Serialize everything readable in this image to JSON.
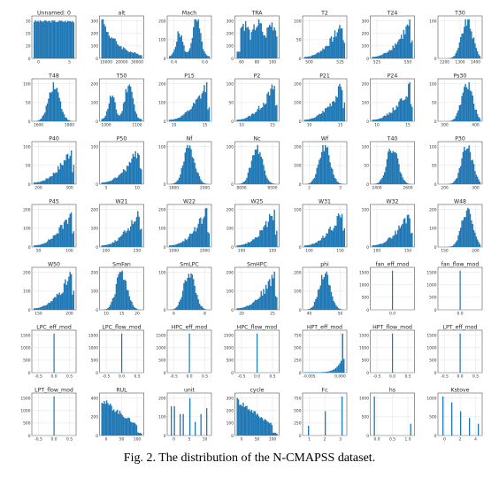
{
  "caption": "Fig. 2. The distribution of the N-CMAPSS dataset.",
  "colors": {
    "bar": "#1f77b4",
    "grid": "#d8d8d8",
    "axis": "#333333"
  },
  "chart_data": [
    {
      "type": "bar",
      "title": "Unnamed: 0",
      "xticks": [
        "0",
        "5"
      ],
      "yticks": [
        "0",
        "10",
        "20",
        "30"
      ],
      "shape": "uniform",
      "grid": true
    },
    {
      "type": "bar",
      "title": "alt",
      "xticks": [
        "10000",
        "20000",
        "30000"
      ],
      "yticks": [
        "0",
        "100",
        "200",
        "300"
      ],
      "shape": "skew-right",
      "grid": true
    },
    {
      "type": "bar",
      "title": "Mach",
      "xticks": [
        "0.4",
        "0.6"
      ],
      "yticks": [
        "0",
        "100",
        "200"
      ],
      "shape": "bimodal",
      "grid": true
    },
    {
      "type": "bar",
      "title": "TRA",
      "xticks": [
        "60",
        "80",
        "100"
      ],
      "yticks": [
        "0",
        "100",
        "200",
        "300"
      ],
      "shape": "multimodal",
      "grid": true
    },
    {
      "type": "bar",
      "title": "T2",
      "xticks": [
        "500",
        "525"
      ],
      "yticks": [
        "0",
        "50",
        "100"
      ],
      "shape": "skew-left",
      "grid": true
    },
    {
      "type": "bar",
      "title": "T24",
      "xticks": [
        "525",
        "550"
      ],
      "yticks": [
        "0",
        "100",
        "200",
        "300"
      ],
      "shape": "skew-left",
      "grid": true
    },
    {
      "type": "bar",
      "title": "T30",
      "xticks": [
        "1200",
        "1300",
        "1400"
      ],
      "yticks": [
        "0",
        "100"
      ],
      "shape": "right-bell",
      "grid": true
    },
    {
      "type": "bar",
      "title": "T48",
      "xticks": [
        "1600",
        "1800"
      ],
      "yticks": [
        "0",
        "50",
        "100"
      ],
      "shape": "bell",
      "grid": true
    },
    {
      "type": "bar",
      "title": "T50",
      "xticks": [
        "1000",
        "1100"
      ],
      "yticks": [
        "0",
        "100",
        "200"
      ],
      "shape": "bimodal",
      "grid": true
    },
    {
      "type": "bar",
      "title": "P15",
      "xticks": [
        "10",
        "15"
      ],
      "yticks": [
        "0",
        "100",
        "200"
      ],
      "shape": "skew-left",
      "grid": true
    },
    {
      "type": "bar",
      "title": "P2",
      "xticks": [
        "10",
        "15"
      ],
      "yticks": [
        "0",
        "50",
        "100"
      ],
      "shape": "skew-left",
      "grid": true
    },
    {
      "type": "bar",
      "title": "P21",
      "xticks": [
        "10",
        "15"
      ],
      "yticks": [
        "0",
        "100",
        "200"
      ],
      "shape": "skew-left",
      "grid": true
    },
    {
      "type": "bar",
      "title": "P24",
      "xticks": [
        "10",
        "15"
      ],
      "yticks": [
        "0",
        "100",
        "200"
      ],
      "shape": "skew-left",
      "grid": true
    },
    {
      "type": "bar",
      "title": "Ps30",
      "xticks": [
        "300",
        "400"
      ],
      "yticks": [
        "0",
        "50",
        "100"
      ],
      "shape": "right-bell",
      "grid": true
    },
    {
      "type": "bar",
      "title": "P40",
      "xticks": [
        "200",
        "300"
      ],
      "yticks": [
        "0",
        "50",
        "100"
      ],
      "shape": "skew-left",
      "grid": true
    },
    {
      "type": "bar",
      "title": "P50",
      "xticks": [
        "5",
        "10"
      ],
      "yticks": [
        "0",
        "100"
      ],
      "shape": "skew-left",
      "grid": true
    },
    {
      "type": "bar",
      "title": "Nf",
      "xticks": [
        "1800",
        "2000"
      ],
      "yticks": [
        "0",
        "100"
      ],
      "shape": "bell",
      "grid": true
    },
    {
      "type": "bar",
      "title": "Nc",
      "xticks": [
        "8000",
        "8500"
      ],
      "yticks": [
        "0",
        "100"
      ],
      "shape": "bell",
      "grid": true
    },
    {
      "type": "bar",
      "title": "Wf",
      "xticks": [
        "2",
        "3"
      ],
      "yticks": [
        "0",
        "100",
        "200"
      ],
      "shape": "bell",
      "grid": true
    },
    {
      "type": "bar",
      "title": "T40",
      "xticks": [
        "2400",
        "2600"
      ],
      "yticks": [
        "0",
        "50",
        "100"
      ],
      "shape": "bell",
      "grid": true
    },
    {
      "type": "bar",
      "title": "P30",
      "xticks": [
        "200",
        "300"
      ],
      "yticks": [
        "0",
        "50",
        "100"
      ],
      "shape": "right-bell",
      "grid": true
    },
    {
      "type": "bar",
      "title": "P45",
      "xticks": [
        "50",
        "100"
      ],
      "yticks": [
        "0",
        "100",
        "200"
      ],
      "shape": "skew-left",
      "grid": true
    },
    {
      "type": "bar",
      "title": "W21",
      "xticks": [
        "200",
        "250"
      ],
      "yticks": [
        "0",
        "100",
        "200"
      ],
      "shape": "skew-left",
      "grid": true
    },
    {
      "type": "bar",
      "title": "W22",
      "xticks": [
        "1000",
        "2000"
      ],
      "yticks": [
        "0",
        "100",
        "200"
      ],
      "shape": "skew-left",
      "grid": true
    },
    {
      "type": "bar",
      "title": "W25",
      "xticks": [
        "100",
        "150"
      ],
      "yticks": [
        "0",
        "100",
        "200"
      ],
      "shape": "skew-left",
      "grid": true
    },
    {
      "type": "bar",
      "title": "W31",
      "xticks": [
        "100",
        "150"
      ],
      "yticks": [
        "0",
        "100"
      ],
      "shape": "skew-left",
      "grid": true
    },
    {
      "type": "bar",
      "title": "W32",
      "xticks": [
        "100",
        "150"
      ],
      "yticks": [
        "0",
        "100"
      ],
      "shape": "skew-left",
      "grid": true
    },
    {
      "type": "bar",
      "title": "W48",
      "xticks": [
        "150",
        "200"
      ],
      "yticks": [
        "0",
        "100",
        "200"
      ],
      "shape": "right-bell",
      "grid": true
    },
    {
      "type": "bar",
      "title": "W50",
      "xticks": [
        "150",
        "200"
      ],
      "yticks": [
        "0",
        "100",
        "200"
      ],
      "shape": "skew-left",
      "grid": true
    },
    {
      "type": "bar",
      "title": "SmFan",
      "xticks": [
        "10",
        "15",
        "20"
      ],
      "yticks": [
        "0",
        "100",
        "200"
      ],
      "shape": "bell",
      "grid": true
    },
    {
      "type": "bar",
      "title": "SmLPC",
      "xticks": [
        "6",
        "8"
      ],
      "yticks": [
        "0",
        "100"
      ],
      "shape": "bell",
      "grid": true
    },
    {
      "type": "bar",
      "title": "SmHPC",
      "xticks": [
        "20",
        "25"
      ],
      "yticks": [
        "0",
        "100",
        "200"
      ],
      "shape": "skew-left",
      "grid": true
    },
    {
      "type": "bar",
      "title": "phi",
      "xticks": [
        "40",
        "50"
      ],
      "yticks": [
        "0",
        "100",
        "200"
      ],
      "shape": "bell",
      "grid": true
    },
    {
      "type": "bar",
      "title": "fan_eff_mod",
      "xticks": [
        "0.0"
      ],
      "yticks": [
        "0",
        "500",
        "1000",
        "1500"
      ],
      "shape": "spike-center",
      "grid": true
    },
    {
      "type": "bar",
      "title": "fan_flow_mod",
      "xticks": [
        "0.0"
      ],
      "yticks": [
        "0",
        "500",
        "1000",
        "1500"
      ],
      "shape": "spike-center",
      "grid": true
    },
    {
      "type": "bar",
      "title": "LPC_eff_mod",
      "xticks": [
        "-0.5",
        "0.0",
        "0.5"
      ],
      "yticks": [
        "0",
        "500",
        "1000",
        "1500"
      ],
      "shape": "spike-center",
      "grid": true
    },
    {
      "type": "bar",
      "title": "LPC_flow_mod",
      "xticks": [
        "-0.5",
        "0.0",
        "0.5"
      ],
      "yticks": [
        "0",
        "500",
        "1000",
        "1500"
      ],
      "shape": "spike-center",
      "grid": true
    },
    {
      "type": "bar",
      "title": "HPC_eff_mod",
      "xticks": [
        "-0.5",
        "0.0",
        "0.5"
      ],
      "yticks": [
        "0",
        "500",
        "1000",
        "1500"
      ],
      "shape": "spike-center",
      "grid": true
    },
    {
      "type": "bar",
      "title": "HPC_flow_mod",
      "xticks": [
        "-0.5",
        "0.0",
        "0.5"
      ],
      "yticks": [
        "0",
        "500",
        "1000",
        "1500"
      ],
      "shape": "spike-center",
      "grid": true
    },
    {
      "type": "bar",
      "title": "HPT_eff_mod",
      "xticks": [
        "-0.005",
        "0.000"
      ],
      "yticks": [
        "0",
        "250",
        "500",
        "750"
      ],
      "shape": "spike-right-tail",
      "grid": true
    },
    {
      "type": "bar",
      "title": "HPT_flow_mod",
      "xticks": [
        "-0.5",
        "0.0",
        "0.5"
      ],
      "yticks": [
        "0",
        "500",
        "1000",
        "1500"
      ],
      "shape": "spike-center",
      "grid": true
    },
    {
      "type": "bar",
      "title": "LPT_eff_mod",
      "xticks": [
        "-0.5",
        "0.0",
        "0.5"
      ],
      "yticks": [
        "0",
        "500",
        "1000",
        "1500"
      ],
      "shape": "spike-center",
      "grid": true
    },
    {
      "type": "bar",
      "title": "LPT_flow_mod",
      "xticks": [
        "-0.5",
        "0.0",
        "0.5"
      ],
      "yticks": [
        "0",
        "500",
        "1000",
        "1500"
      ],
      "shape": "spike-center",
      "grid": true
    },
    {
      "type": "bar",
      "title": "RUL",
      "xticks": [
        "0",
        "50",
        "100"
      ],
      "yticks": [
        "0",
        "200",
        "400"
      ],
      "shape": "decreasing",
      "grid": true
    },
    {
      "type": "bar",
      "title": "unit",
      "xticks": [
        "0",
        "5",
        "10"
      ],
      "yticks": [
        "0",
        "100",
        "200"
      ],
      "shape": "comb",
      "grid": true
    },
    {
      "type": "bar",
      "title": "cycle",
      "xticks": [
        "0",
        "50",
        "100"
      ],
      "yticks": [
        "0",
        "100",
        "200",
        "300"
      ],
      "shape": "decreasing",
      "grid": true
    },
    {
      "type": "bar",
      "title": "Fc",
      "xticks": [
        "1",
        "2",
        "3"
      ],
      "yticks": [
        "0",
        "250",
        "500",
        "750"
      ],
      "shape": "three-spikes",
      "grid": true
    },
    {
      "type": "bar",
      "title": "hs",
      "xticks": [
        "0.0",
        "0.5",
        "1.0"
      ],
      "yticks": [
        "0",
        "500",
        "1000"
      ],
      "shape": "two-spikes",
      "grid": true
    },
    {
      "type": "bar",
      "title": "Kstove",
      "xticks": [
        "0",
        "2",
        "4"
      ],
      "yticks": [
        "0",
        "500",
        "1000"
      ],
      "shape": "steps-down",
      "grid": true
    }
  ]
}
